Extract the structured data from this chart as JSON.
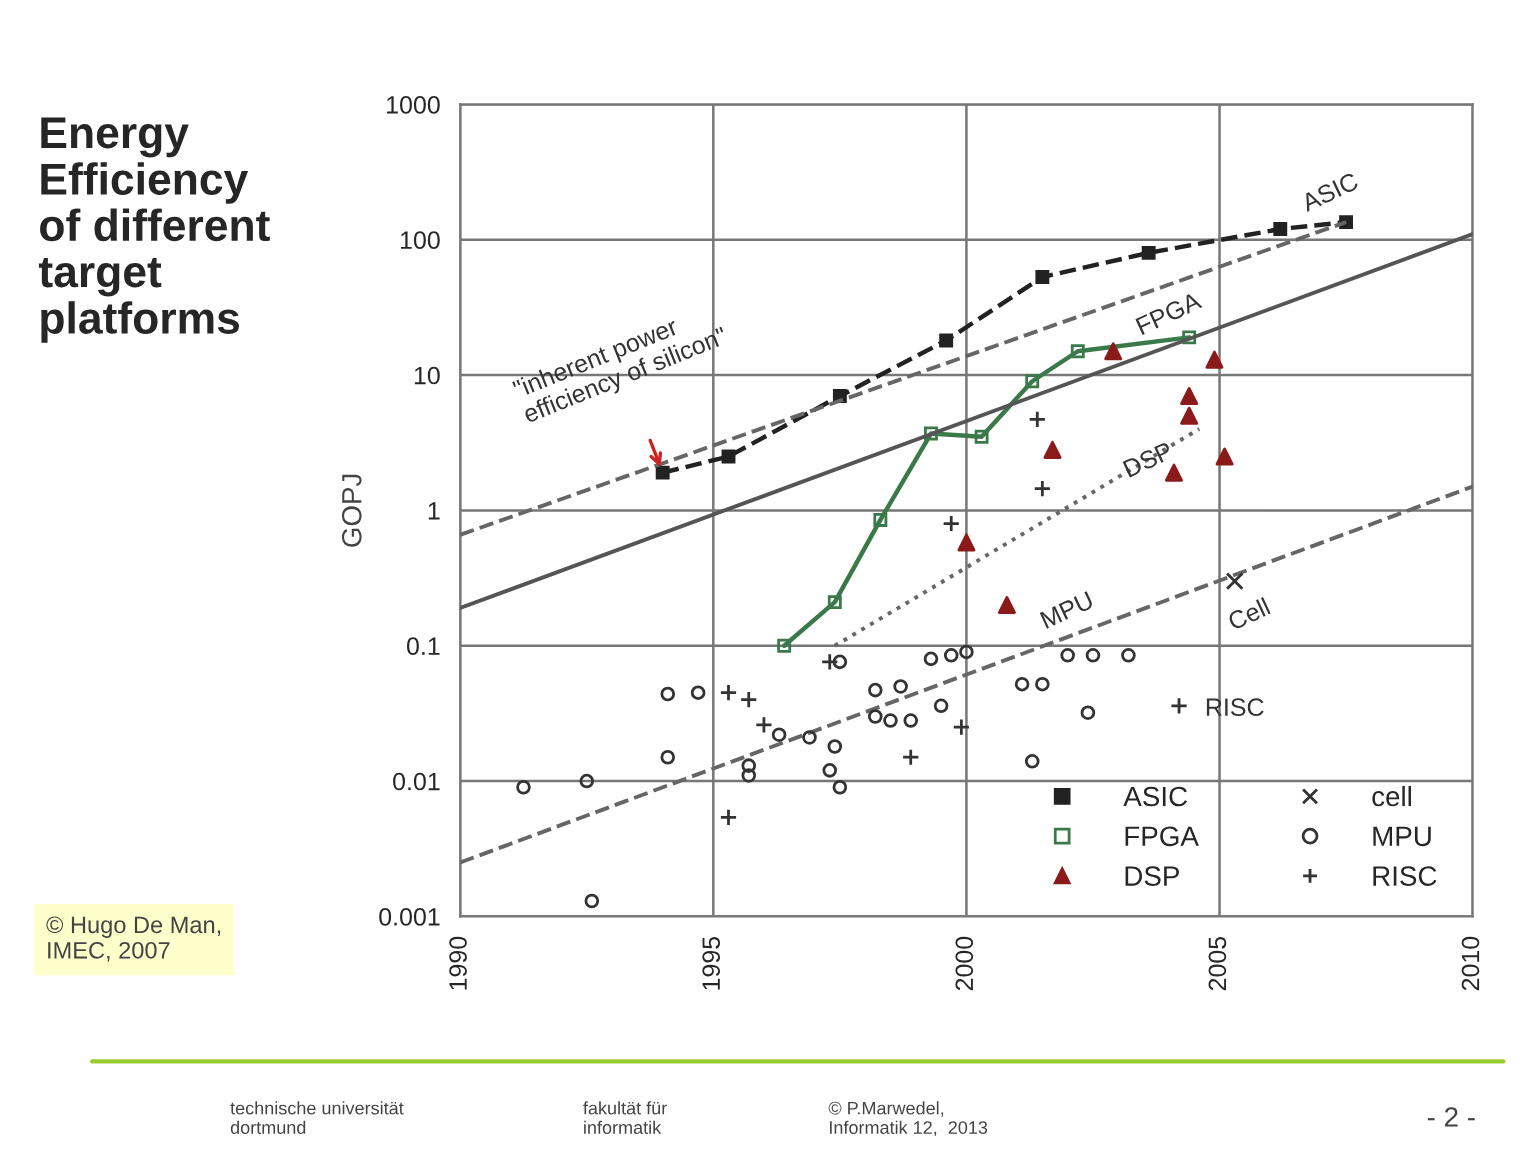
{
  "chart_data": {
    "type": "scatter",
    "title": "Energy\nEfficiency\nof different\ntarget\nplatforms",
    "ylabel": "GOPJ",
    "xlim": [
      1990,
      2010
    ],
    "xticks": [
      1990,
      1995,
      2000,
      2005,
      2010
    ],
    "ylim": [
      0.001,
      1000
    ],
    "yticks": [
      0.001,
      0.01,
      0.1,
      1,
      10,
      100,
      1000
    ],
    "log": "y",
    "grid": true,
    "legend": "bottom right",
    "series": [
      {
        "name": "ASIC",
        "type": "line",
        "line_style": "dashed",
        "marker": "square",
        "color": "#222222",
        "x": [
          1994.0,
          1995.3,
          1997.5,
          1999.6,
          2001.5,
          2003.6,
          2006.2,
          2007.5
        ],
        "values": [
          1.9,
          2.5,
          7,
          18,
          53,
          80,
          120,
          135
        ]
      },
      {
        "name": "FPGA",
        "type": "line",
        "line_style": "solid",
        "marker": "square",
        "color": "#3a7a4a",
        "x": [
          1996.4,
          1997.4,
          1998.3,
          1999.3,
          2000.3,
          2001.3,
          2002.2,
          2004.4
        ],
        "values": [
          0.1,
          0.21,
          0.85,
          3.7,
          3.5,
          9,
          15,
          19
        ]
      },
      {
        "name": "DSP",
        "marker": "triangle",
        "color": "#8b1a1a",
        "x": [
          2002.9,
          2004.9,
          2004.4,
          2004.4,
          2001.7,
          2004.1,
          2005.1,
          2000.0,
          2000.8
        ],
        "values": [
          15,
          13,
          7,
          5,
          2.8,
          1.9,
          2.5,
          0.58,
          0.2
        ]
      },
      {
        "name": "cell",
        "marker": "cross",
        "color": "#333333",
        "x": [
          2005.3
        ],
        "values": [
          0.3
        ]
      },
      {
        "name": "MPU",
        "marker": "circle",
        "color": "#333333",
        "x": [
          1991.25,
          1992.5,
          1992.6,
          1994.1,
          1994.1,
          1994.7,
          1995.7,
          1995.7,
          1996.3,
          1996.9,
          1997.3,
          1997.5,
          1997.4,
          1998.2,
          1998.5,
          1998.9,
          1998.2,
          1998.7,
          1999.5,
          1999.3,
          1999.7,
          2000.0,
          2001.1,
          2001.5,
          2002.0,
          2002.5,
          2003.2,
          2002.4,
          2001.3,
          1997.5
        ],
        "values": [
          0.009,
          0.01,
          0.0013,
          0.015,
          0.044,
          0.045,
          0.013,
          0.011,
          0.022,
          0.021,
          0.012,
          0.009,
          0.018,
          0.03,
          0.028,
          0.028,
          0.047,
          0.05,
          0.036,
          0.08,
          0.085,
          0.09,
          0.052,
          0.052,
          0.085,
          0.085,
          0.085,
          0.032,
          0.014,
          0.076
        ]
      },
      {
        "name": "RISC",
        "marker": "plus",
        "color": "#333333",
        "x": [
          1995.3,
          1995.3,
          1995.7,
          1996.0,
          1998.9,
          1999.9,
          1997.3,
          2001.5,
          1999.7,
          2001.4,
          2004.2
        ],
        "values": [
          0.0054,
          0.045,
          0.04,
          0.026,
          0.015,
          0.025,
          0.076,
          1.45,
          0.8,
          4.7,
          0.036
        ]
      },
      {
        "type": "line",
        "line_style": "dashed",
        "marker": "none",
        "color": "#666666",
        "x": [
          1990,
          2007.5
        ],
        "values": [
          0.66,
          135
        ]
      },
      {
        "type": "line",
        "line_style": "solid",
        "marker": "none",
        "color": "#555555",
        "x": [
          1990,
          2010
        ],
        "values": [
          0.19,
          110
        ]
      },
      {
        "type": "line",
        "line_style": "dotted",
        "marker": "none",
        "color": "#666666",
        "x": [
          1997.4,
          2004.6
        ],
        "values": [
          0.1,
          4
        ]
      },
      {
        "type": "line",
        "line_style": "dashed",
        "marker": "none",
        "color": "#666666",
        "x": [
          1990,
          2010
        ],
        "values": [
          0.0025,
          1.5
        ]
      }
    ],
    "annotations": [
      {
        "text": "\"inherent power\nefficiency of silicon\"",
        "x": 1994.0,
        "y": 1.9
      },
      "ASIC",
      "FPGA",
      "DSP",
      "MPU",
      "Cell",
      "RISC",
      "© Hugo De Man,\nIMEC, 2007",
      "technische universität\ndortmund",
      "fakultät für\ninformatik",
      "© P.Marwedel,\nInformatik 12,  2013",
      "- 2 -"
    ]
  }
}
